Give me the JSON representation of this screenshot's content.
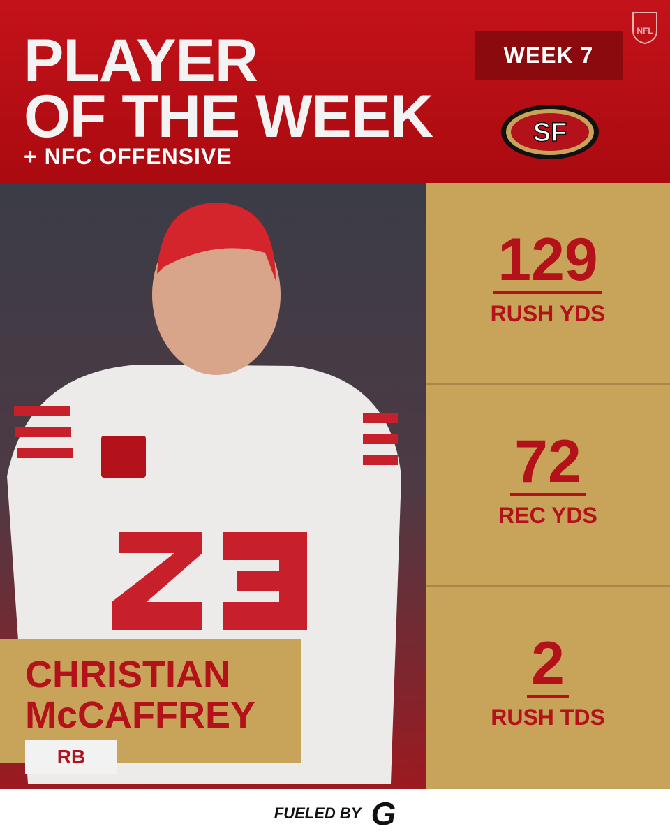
{
  "header": {
    "title_lines": [
      "PLAYER",
      "OF THE WEEK"
    ],
    "subtitle": "+ NFC OFFENSIVE",
    "week": "WEEK 7",
    "team_logo": "SF",
    "league_logo": "NFL"
  },
  "player": {
    "name_lines": [
      "CHRISTIAN",
      "McCAFFREY"
    ],
    "position": "RB"
  },
  "stats": [
    {
      "value": 129,
      "label": "RUSH YDS"
    },
    {
      "value": 72,
      "label": "REC YDS"
    },
    {
      "value": 2,
      "label": "RUSH TDS"
    }
  ],
  "footer": {
    "text": "FUELED BY",
    "sponsor_mark": "G"
  }
}
